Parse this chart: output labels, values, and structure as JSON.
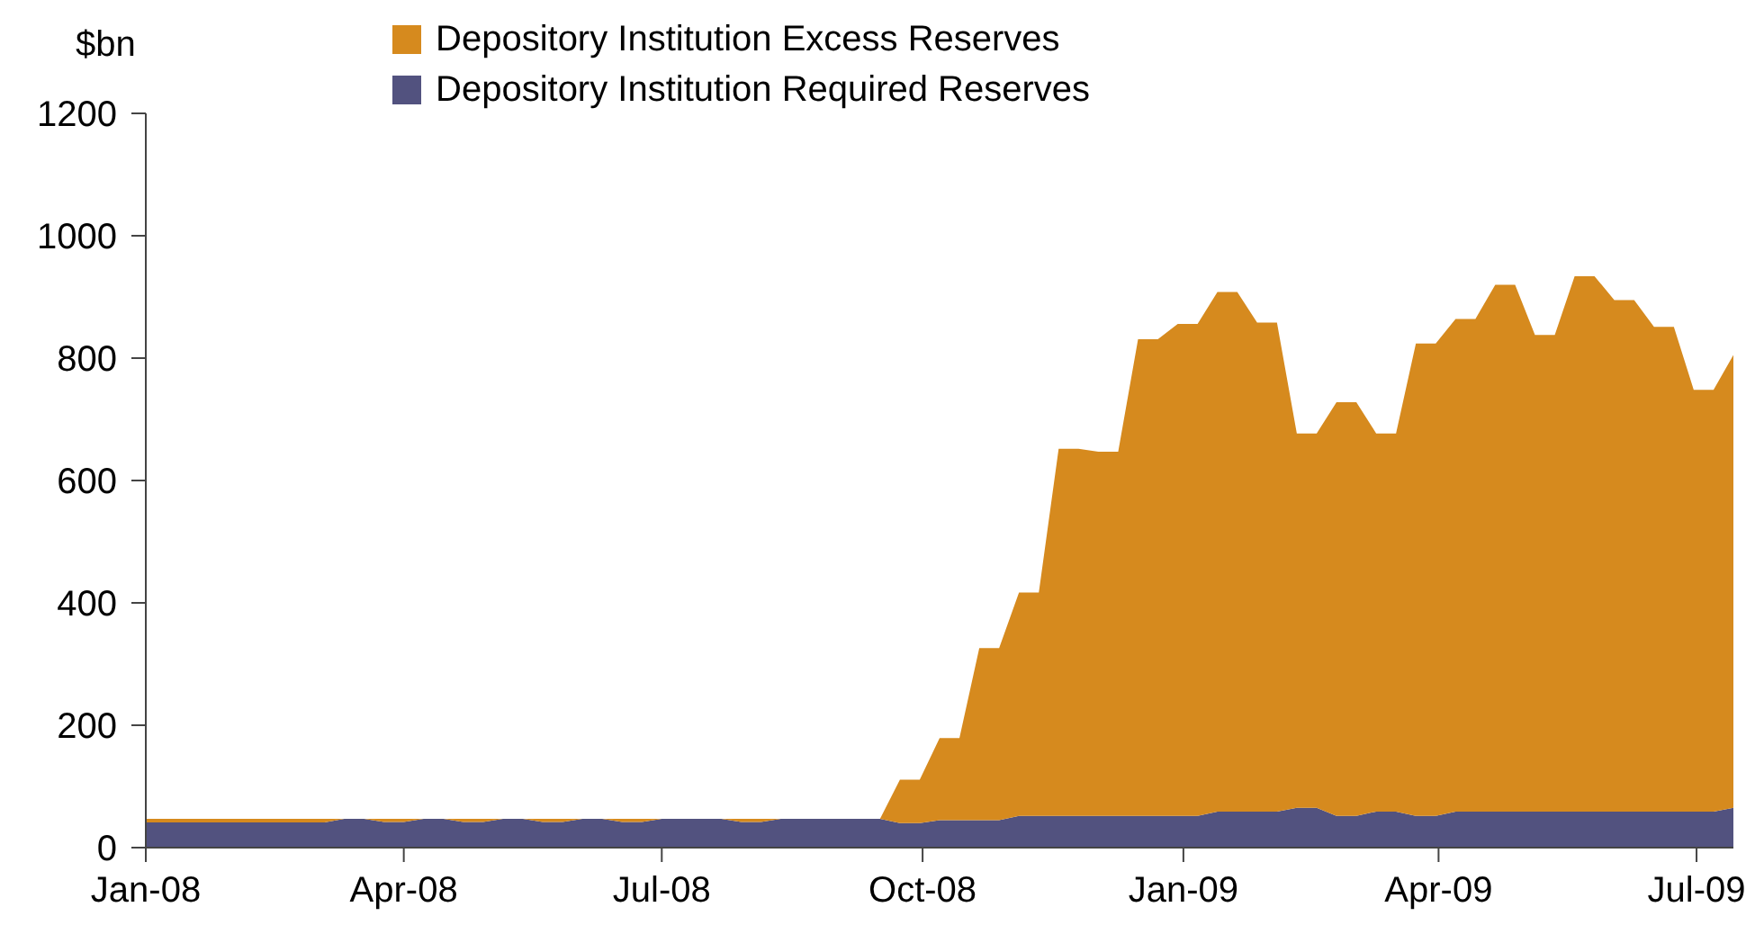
{
  "chart_data": {
    "type": "area",
    "ylabel": "$bn",
    "stacked": true,
    "legend": "top",
    "x": [
      "2008-01-02",
      "2008-01-09",
      "2008-01-16",
      "2008-01-23",
      "2008-01-30",
      "2008-02-06",
      "2008-02-13",
      "2008-02-20",
      "2008-02-27",
      "2008-03-05",
      "2008-03-12",
      "2008-03-19",
      "2008-03-26",
      "2008-04-02",
      "2008-04-09",
      "2008-04-16",
      "2008-04-23",
      "2008-04-30",
      "2008-05-07",
      "2008-05-14",
      "2008-05-21",
      "2008-05-28",
      "2008-06-04",
      "2008-06-11",
      "2008-06-18",
      "2008-06-25",
      "2008-07-02",
      "2008-07-09",
      "2008-07-16",
      "2008-07-23",
      "2008-07-30",
      "2008-08-06",
      "2008-08-13",
      "2008-08-20",
      "2008-08-27",
      "2008-09-03",
      "2008-09-10",
      "2008-09-17",
      "2008-09-24",
      "2008-10-01",
      "2008-10-08",
      "2008-10-15",
      "2008-10-22",
      "2008-10-29",
      "2008-11-05",
      "2008-11-12",
      "2008-11-19",
      "2008-11-26",
      "2008-12-03",
      "2008-12-10",
      "2008-12-17",
      "2008-12-24",
      "2008-12-31",
      "2009-01-07",
      "2009-01-14",
      "2009-01-21",
      "2009-01-28",
      "2009-02-04",
      "2009-02-11",
      "2009-02-18",
      "2009-02-25",
      "2009-03-04",
      "2009-03-11",
      "2009-03-18",
      "2009-03-25",
      "2009-04-01",
      "2009-04-08",
      "2009-04-15",
      "2009-04-22",
      "2009-04-29",
      "2009-05-06",
      "2009-05-13",
      "2009-05-20",
      "2009-05-27",
      "2009-06-03",
      "2009-06-10",
      "2009-06-17",
      "2009-06-24",
      "2009-07-01",
      "2009-07-08",
      "2009-07-15"
    ],
    "series": [
      {
        "name": "Depository Institution Required Reserves",
        "color": "#52527f",
        "values": [
          41,
          41,
          41,
          41,
          41,
          41,
          41,
          41,
          41,
          41,
          47,
          47,
          42,
          42,
          47,
          47,
          42,
          42,
          47,
          47,
          42,
          42,
          47,
          47,
          42,
          42,
          47,
          47,
          47,
          47,
          42,
          42,
          47,
          47,
          47,
          47,
          47,
          47,
          40,
          40,
          45,
          45,
          45,
          45,
          52,
          52,
          52,
          52,
          52,
          52,
          52,
          52,
          52,
          52,
          59,
          59,
          59,
          59,
          65,
          65,
          52,
          52,
          59,
          59,
          52,
          52,
          59,
          59,
          59,
          59,
          59,
          59,
          59,
          59,
          59,
          59,
          59,
          59,
          59,
          59,
          65
        ]
      },
      {
        "name": "Depository Institution Excess Reserves",
        "color": "#d68a1e",
        "values": [
          6,
          6,
          6,
          6,
          6,
          6,
          6,
          6,
          6,
          6,
          0,
          0,
          5,
          5,
          0,
          0,
          5,
          5,
          0,
          0,
          5,
          5,
          0,
          0,
          5,
          5,
          0,
          0,
          0,
          0,
          5,
          5,
          0,
          0,
          0,
          0,
          0,
          0,
          71,
          71,
          134,
          134,
          281,
          281,
          365,
          365,
          600,
          600,
          595,
          595,
          779,
          779,
          804,
          804,
          849,
          849,
          799,
          799,
          612,
          612,
          676,
          676,
          618,
          618,
          772,
          772,
          805,
          805,
          861,
          861,
          779,
          779,
          875,
          875,
          836,
          836,
          792,
          792,
          689,
          689,
          740
        ]
      }
    ],
    "xlim": [
      "2008-01-02",
      "2009-07-15"
    ],
    "xticks": [
      {
        "value": "2008-01-02",
        "label": "Jan-08"
      },
      {
        "value": "2008-04-02",
        "label": "Apr-08"
      },
      {
        "value": "2008-07-02",
        "label": "Jul-08"
      },
      {
        "value": "2008-10-02",
        "label": "Oct-08"
      },
      {
        "value": "2009-01-02",
        "label": "Jan-09"
      },
      {
        "value": "2009-04-02",
        "label": "Apr-09"
      },
      {
        "value": "2009-07-02",
        "label": "Jul-09"
      }
    ],
    "ylim": [
      0,
      1200
    ],
    "yticks": [
      0,
      200,
      400,
      600,
      800,
      1000,
      1200
    ]
  }
}
